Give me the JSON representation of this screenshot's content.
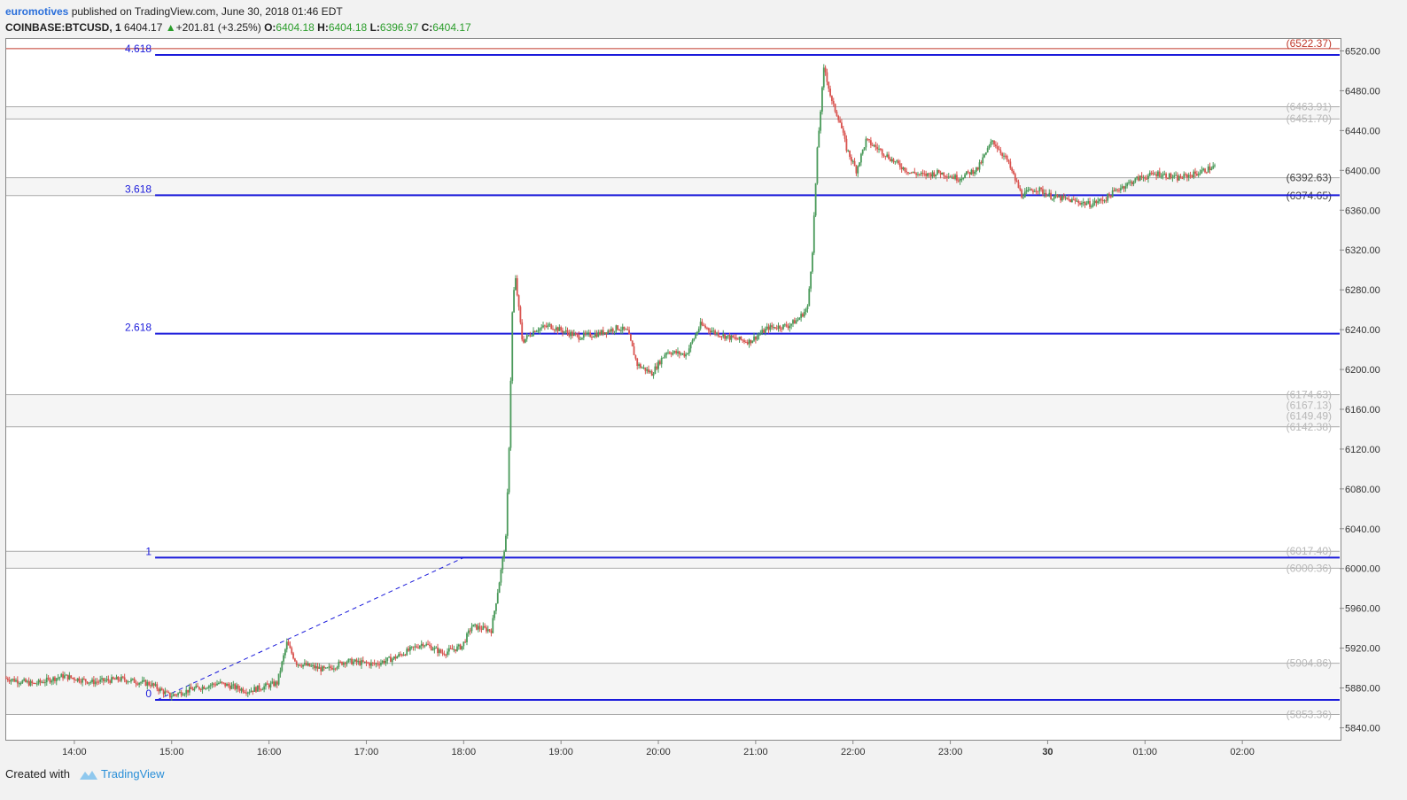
{
  "header": {
    "author": "euromotives",
    "published": "published on TradingView.com, June 30, 2018 01:46 EDT",
    "symbol": "COINBASE:BTCUSD, 1",
    "last": "6404.17",
    "change": "+201.81 (+3.25%)",
    "o_label": "O:",
    "o_value": "6404.18",
    "h_label": "H:",
    "h_value": "6404.18",
    "l_label": "L:",
    "l_value": "6396.97",
    "c_label": "C:",
    "c_value": "6404.17"
  },
  "footer": {
    "created": "Created with",
    "brand": "TradingView"
  },
  "colors": {
    "up": "#4a9a5a",
    "down": "#d9534f",
    "fib": "#1a1adb",
    "resistance": "#c0392b",
    "zone_line": "#999999"
  },
  "chart_data": {
    "type": "candlestick",
    "ylim": [
      5828,
      6532
    ],
    "y_ticks": [
      5840,
      5880,
      5920,
      5960,
      6000,
      6040,
      6080,
      6120,
      6160,
      6200,
      6240,
      6280,
      6320,
      6360,
      6400,
      6440,
      6480,
      6520
    ],
    "y_tick_labels": [
      "5840.00",
      "5880.00",
      "5920.00",
      "5960.00",
      "6000.00",
      "6040.00",
      "6080.00",
      "6120.00",
      "6160.00",
      "6200.00",
      "6240.00",
      "6280.00",
      "6320.00",
      "6360.00",
      "6400.00",
      "6440.00",
      "6480.00",
      "6520.00"
    ],
    "x_ticks": [
      "14:00",
      "15:00",
      "16:00",
      "17:00",
      "18:00",
      "19:00",
      "20:00",
      "21:00",
      "22:00",
      "23:00",
      "30",
      "01:00",
      "02:00"
    ],
    "x_tick_hours": [
      14,
      15,
      16,
      17,
      18,
      19,
      20,
      21,
      22,
      23,
      24,
      25,
      26
    ],
    "x_range_hours": [
      13.3,
      27.0
    ],
    "fib_levels": [
      {
        "label": "0",
        "price": 5868
      },
      {
        "label": "1",
        "price": 6011
      },
      {
        "label": "2.618",
        "price": 6236
      },
      {
        "label": "3.618",
        "price": 6375
      },
      {
        "label": "4.618",
        "price": 6516
      }
    ],
    "fib_start_hour": 14.83,
    "trend_line": {
      "from_hour": 14.85,
      "from_price": 5868,
      "to_hour": 18.0,
      "to_price": 6011
    },
    "resistance": {
      "price": 6522.37,
      "label": "(6522.37)"
    },
    "zones": [
      {
        "top": 6463.91,
        "bottom": 6451.7,
        "labels": [
          "(6463.91)",
          "(6451.70)"
        ]
      },
      {
        "top": 6392.63,
        "bottom": 6374.65,
        "labels": [
          "(6392.63)",
          "(6374.65)"
        ]
      },
      {
        "top": 6174.63,
        "bottom": 6142.38,
        "labels": [
          "(6174.63)",
          "(6167.13)",
          "(6149.49)",
          "(6142.38)"
        ]
      },
      {
        "top": 6017.4,
        "bottom": 6000.36,
        "labels": [
          "(6017.40)",
          "(6000.36)"
        ]
      },
      {
        "top": 5904.86,
        "bottom": 5853.36,
        "labels": [
          "(5904.86)",
          "(5853.36)"
        ]
      }
    ],
    "price_path": [
      [
        13.3,
        5890
      ],
      [
        13.6,
        5884
      ],
      [
        13.9,
        5892
      ],
      [
        14.2,
        5886
      ],
      [
        14.5,
        5889
      ],
      [
        14.8,
        5884
      ],
      [
        15.0,
        5872
      ],
      [
        15.2,
        5878
      ],
      [
        15.5,
        5885
      ],
      [
        15.8,
        5877
      ],
      [
        16.1,
        5885
      ],
      [
        16.2,
        5925
      ],
      [
        16.3,
        5905
      ],
      [
        16.6,
        5898
      ],
      [
        16.8,
        5907
      ],
      [
        17.1,
        5904
      ],
      [
        17.3,
        5910
      ],
      [
        17.6,
        5925
      ],
      [
        17.8,
        5915
      ],
      [
        18.0,
        5922
      ],
      [
        18.1,
        5942
      ],
      [
        18.3,
        5938
      ],
      [
        18.38,
        5985
      ],
      [
        18.45,
        6030
      ],
      [
        18.48,
        6110
      ],
      [
        18.52,
        6270
      ],
      [
        18.55,
        6290
      ],
      [
        18.62,
        6228
      ],
      [
        18.75,
        6240
      ],
      [
        18.9,
        6244
      ],
      [
        19.0,
        6240
      ],
      [
        19.2,
        6233
      ],
      [
        19.4,
        6236
      ],
      [
        19.6,
        6242
      ],
      [
        19.7,
        6238
      ],
      [
        19.8,
        6205
      ],
      [
        19.95,
        6196
      ],
      [
        20.1,
        6218
      ],
      [
        20.3,
        6215
      ],
      [
        20.45,
        6245
      ],
      [
        20.6,
        6237
      ],
      [
        20.75,
        6232
      ],
      [
        20.95,
        6228
      ],
      [
        21.15,
        6242
      ],
      [
        21.35,
        6244
      ],
      [
        21.45,
        6250
      ],
      [
        21.55,
        6262
      ],
      [
        21.6,
        6320
      ],
      [
        21.65,
        6420
      ],
      [
        21.72,
        6505
      ],
      [
        21.8,
        6468
      ],
      [
        21.88,
        6450
      ],
      [
        21.95,
        6422
      ],
      [
        22.05,
        6400
      ],
      [
        22.15,
        6430
      ],
      [
        22.3,
        6420
      ],
      [
        22.45,
        6408
      ],
      [
        22.6,
        6398
      ],
      [
        22.75,
        6395
      ],
      [
        22.9,
        6398
      ],
      [
        23.1,
        6392
      ],
      [
        23.3,
        6402
      ],
      [
        23.45,
        6430
      ],
      [
        23.6,
        6410
      ],
      [
        23.75,
        6375
      ],
      [
        23.9,
        6382
      ],
      [
        24.05,
        6374
      ],
      [
        24.25,
        6370
      ],
      [
        24.45,
        6366
      ],
      [
        24.6,
        6371
      ],
      [
        24.75,
        6382
      ],
      [
        24.95,
        6392
      ],
      [
        25.15,
        6397
      ],
      [
        25.35,
        6392
      ],
      [
        25.55,
        6397
      ],
      [
        25.73,
        6404
      ]
    ]
  }
}
